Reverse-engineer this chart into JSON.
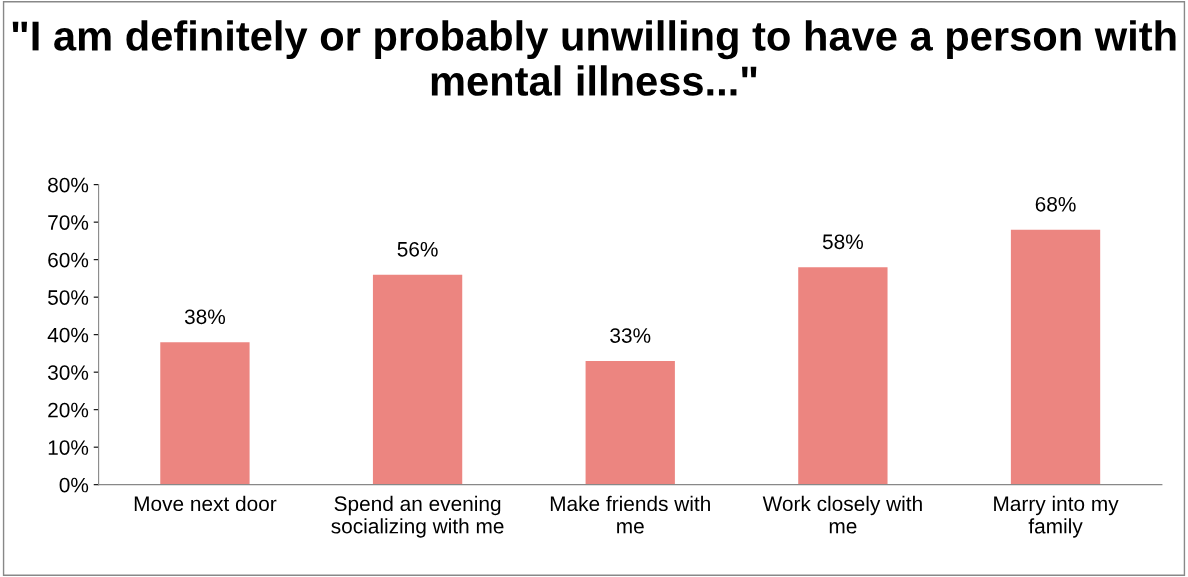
{
  "chart_data": {
    "type": "bar",
    "title": "\"I am definitely or probably unwilling to have a person with mental illness...\"",
    "categories": [
      "Move next door",
      "Spend an evening socializing with me",
      "Make friends with me",
      "Work closely with me",
      "Marry into my family"
    ],
    "values": [
      38,
      56,
      33,
      58,
      68
    ],
    "value_labels": [
      "38%",
      "56%",
      "33%",
      "58%",
      "68%"
    ],
    "color": "#ec8580",
    "ylim": [
      0,
      80
    ],
    "yticks": [
      {
        "value": 0,
        "label": "0%"
      },
      {
        "value": 10,
        "label": "10%"
      },
      {
        "value": 20,
        "label": "20%"
      },
      {
        "value": 30,
        "label": "30%"
      },
      {
        "value": 40,
        "label": "40%"
      },
      {
        "value": 50,
        "label": "50%"
      },
      {
        "value": 60,
        "label": "60%"
      },
      {
        "value": 70,
        "label": "70%"
      },
      {
        "value": 80,
        "label": "80%"
      }
    ],
    "grid": false,
    "legend": false
  }
}
